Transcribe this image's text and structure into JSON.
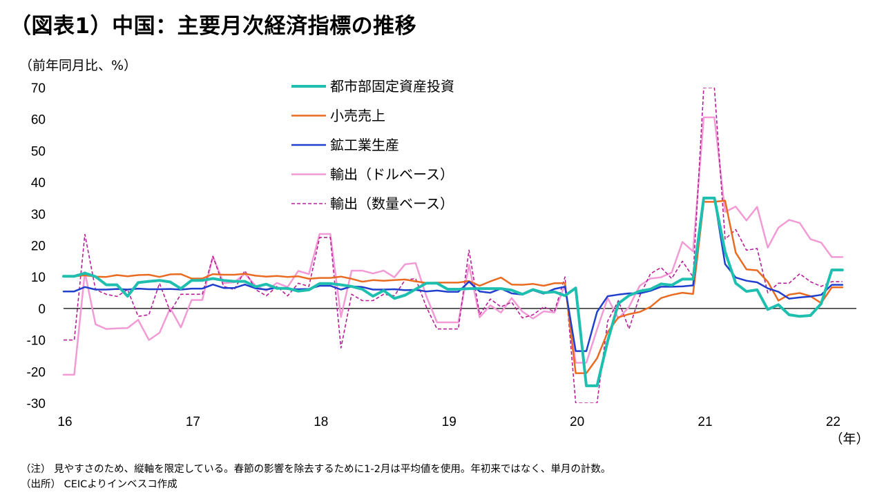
{
  "page": {
    "title": "（図表1）中国：主要月次経済指標の推移",
    "note1": "（注） 見やすさのため、縦軸を限定している。春節の影響を除去するために1-2月は平均値を使用。年初来ではなく、単月の計数。",
    "note2": "（出所） CEICよりインベスコ作成"
  },
  "chart_data": {
    "type": "line",
    "title": "（図表1）中国：主要月次経済指標の推移",
    "ylabel": "（前年同月比、%）",
    "xlabel": "（年）",
    "ylim": [
      -30,
      70
    ],
    "yticks": [
      70,
      60,
      50,
      40,
      30,
      20,
      10,
      0,
      -10,
      -20,
      -30
    ],
    "x_tick_labels": [
      "16",
      "17",
      "18",
      "19",
      "20",
      "21",
      "22"
    ],
    "x_tick_months": [
      0,
      12,
      24,
      36,
      48,
      60,
      72
    ],
    "month_start": "2016-01",
    "legend_position": "top-center",
    "series": [
      {
        "name": "都市部固定資産投資",
        "color": "#1ebfae",
        "style": "solid",
        "width": 4,
        "values": [
          10.2,
          10.2,
          11.2,
          10.1,
          7.5,
          7.5,
          3.9,
          8.2,
          8.6,
          8.9,
          8.4,
          6.3,
          8.9,
          8.9,
          9.5,
          8.9,
          8.6,
          8.6,
          6.9,
          7.7,
          6.4,
          6.4,
          5.5,
          5.9,
          7.9,
          7.9,
          7.5,
          7.0,
          6.1,
          3.9,
          5.7,
          3.2,
          4.2,
          6.1,
          8.0,
          8.0,
          6.1,
          6.1,
          6.3,
          6.3,
          6.3,
          6.3,
          5.8,
          4.5,
          6.0,
          5.0,
          5.3,
          4.1,
          6.5,
          -24.5,
          -24.5,
          -10.3,
          1.6,
          4.1,
          5.5,
          6.1,
          7.8,
          7.4,
          9.3,
          9.3,
          35.0,
          35.0,
          18.0,
          8.0,
          5.4,
          5.9,
          -0.3,
          1.2,
          -2.0,
          -2.5,
          -2.2,
          1.5,
          12.2,
          12.2
        ]
      },
      {
        "name": "小売売上",
        "color": "#e96b21",
        "style": "solid",
        "width": 2.5,
        "values": [
          10.2,
          10.2,
          10.5,
          10.1,
          10.0,
          10.6,
          10.2,
          10.6,
          10.7,
          10.0,
          10.8,
          10.9,
          9.5,
          9.5,
          10.9,
          10.7,
          10.7,
          11.0,
          10.4,
          10.1,
          10.3,
          10.0,
          10.2,
          9.4,
          9.7,
          9.7,
          10.1,
          9.4,
          8.5,
          9.0,
          8.8,
          9.0,
          9.2,
          8.6,
          8.1,
          8.2,
          8.2,
          8.2,
          8.7,
          7.2,
          8.6,
          9.8,
          7.6,
          7.5,
          7.8,
          7.2,
          8.0,
          8.0,
          -20.5,
          -20.5,
          -15.8,
          -7.5,
          -2.8,
          -1.8,
          -1.1,
          0.5,
          3.3,
          4.3,
          5.0,
          4.6,
          33.8,
          33.8,
          34.2,
          17.7,
          12.4,
          12.1,
          8.5,
          2.5,
          4.4,
          4.9,
          3.9,
          1.7,
          6.7,
          6.7
        ]
      },
      {
        "name": "鉱工業生産",
        "color": "#1f3fcc",
        "style": "solid",
        "width": 2.5,
        "values": [
          5.4,
          5.4,
          6.8,
          6.0,
          6.0,
          6.2,
          6.0,
          6.3,
          6.1,
          6.1,
          6.2,
          6.0,
          6.3,
          6.3,
          7.6,
          6.5,
          6.5,
          7.6,
          6.4,
          6.0,
          6.6,
          6.2,
          6.1,
          6.2,
          7.2,
          7.2,
          6.0,
          7.0,
          6.8,
          6.0,
          6.0,
          6.1,
          5.8,
          5.9,
          5.4,
          5.7,
          5.3,
          5.3,
          8.5,
          5.4,
          5.0,
          6.3,
          4.8,
          4.4,
          5.8,
          4.7,
          6.2,
          6.9,
          -13.5,
          -13.5,
          -1.1,
          3.9,
          4.4,
          4.8,
          4.8,
          5.6,
          6.9,
          6.9,
          7.0,
          7.3,
          35.1,
          35.1,
          14.1,
          9.8,
          8.8,
          8.3,
          6.4,
          5.3,
          3.1,
          3.5,
          3.8,
          4.3,
          7.5,
          7.5
        ]
      },
      {
        "name": "輸出（ドルベース）",
        "color": "#f29ad5",
        "style": "solid",
        "width": 2.5,
        "values": [
          -21.0,
          -21.0,
          11.5,
          -5.0,
          -6.5,
          -6.3,
          -6.2,
          -3.6,
          -10.0,
          -7.7,
          0.1,
          -6.0,
          2.7,
          2.7,
          16.5,
          8.0,
          8.3,
          11.0,
          7.2,
          5.6,
          8.1,
          6.8,
          11.9,
          10.9,
          23.6,
          23.6,
          -2.7,
          12.0,
          12.0,
          11.1,
          12.0,
          9.9,
          14.0,
          14.4,
          3.9,
          -4.4,
          -4.4,
          -4.4,
          13.8,
          -2.8,
          1.0,
          -1.3,
          3.3,
          -1.0,
          -3.2,
          -0.9,
          -1.3,
          7.6,
          -17.2,
          -17.2,
          -6.6,
          3.3,
          -3.2,
          0.5,
          7.2,
          9.5,
          9.9,
          11.4,
          21.1,
          18.1,
          60.6,
          60.6,
          30.6,
          32.3,
          27.9,
          32.2,
          19.3,
          25.6,
          28.1,
          27.1,
          22.0,
          20.9,
          16.3,
          16.3
        ]
      },
      {
        "name": "輸出（数量ベース）",
        "color": "#b51e98",
        "style": "dashed",
        "width": 1.6,
        "values": [
          -10.0,
          -10.0,
          23.5,
          6.0,
          4.5,
          3.8,
          6.0,
          -2.5,
          -2.0,
          8.0,
          -1.0,
          4.5,
          4.5,
          4.5,
          16.5,
          7.0,
          6.0,
          12.0,
          6.0,
          4.0,
          7.0,
          4.0,
          8.0,
          7.0,
          22.5,
          22.5,
          -12.5,
          4.5,
          2.5,
          2.5,
          4.5,
          4.0,
          9.0,
          9.5,
          0.5,
          -6.5,
          -6.5,
          -6.5,
          18.5,
          -2.0,
          3.0,
          0.5,
          2.0,
          -3.0,
          -2.0,
          0.5,
          -1.0,
          10.0,
          -30.0,
          -30.0,
          -30.0,
          -4.0,
          2.5,
          -6.5,
          4.0,
          11.0,
          13.0,
          9.5,
          15.0,
          10.0,
          70.0,
          70.0,
          22.0,
          25.0,
          18.5,
          19.0,
          5.0,
          8.0,
          8.0,
          11.0,
          8.5,
          7.0,
          8.5,
          8.5
        ]
      }
    ]
  }
}
